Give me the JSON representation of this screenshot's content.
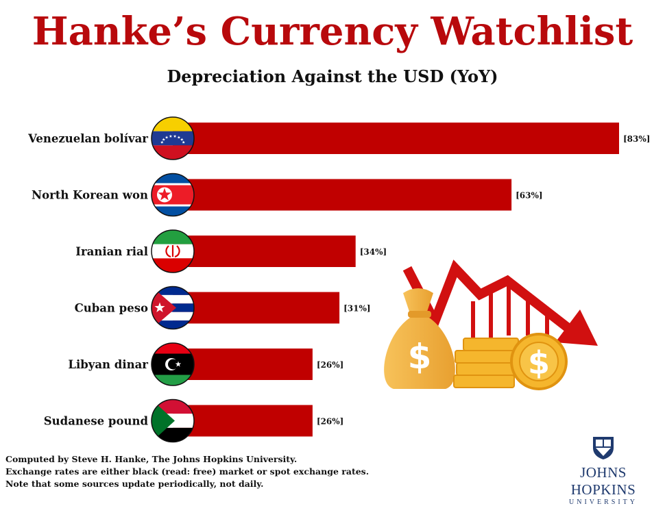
{
  "header": {
    "title": "Hanke’s Currency Watchlist",
    "subtitle": "Depreciation Against the USD (YoY)"
  },
  "chart_data": {
    "type": "bar",
    "orientation": "horizontal",
    "categories": [
      "Venezuelan bolívar",
      "North Korean won",
      "Iranian rial",
      "Cuban peso",
      "Libyan dinar",
      "Sudanese pound"
    ],
    "values": [
      83,
      63,
      34,
      31,
      26,
      26
    ],
    "value_labels": [
      "[83%]",
      "[63%]",
      "[34%]",
      "[31%]",
      "[26%]",
      "[26%]"
    ],
    "flag_icons": [
      "venezuela-flag-icon",
      "north-korea-flag-icon",
      "iran-flag-icon",
      "cuba-flag-icon",
      "libya-flag-icon",
      "sudan-flag-icon"
    ],
    "bar_color": "#c00000"
  },
  "decoration": {
    "illustration_icon": "money-bag-coins-down-arrow-icon"
  },
  "footer": {
    "line1": "Computed by Steve H. Hanke, The Johns Hopkins University.",
    "line2": "Exchange rates are either black (read: free) market or spot exchange rates.",
    "line3": "Note that some sources update periodically, not daily."
  },
  "logo": {
    "name": "JOHNS HOPKINS",
    "sub": "UNIVERSITY"
  },
  "colors": {
    "title": "#b8090c",
    "bar": "#c00000",
    "logo": "#1f3a6e"
  }
}
